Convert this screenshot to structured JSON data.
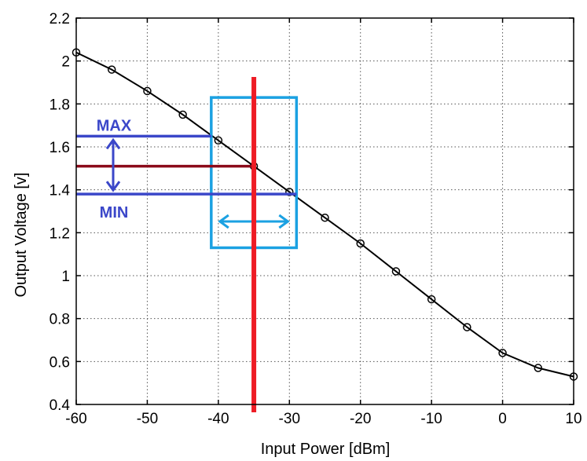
{
  "chart_data": {
    "type": "line",
    "xlabel": "Input Power [dBm]",
    "ylabel": "Output Voltage [v]",
    "xlim": [
      -60,
      10
    ],
    "ylim": [
      0.4,
      2.2
    ],
    "x_ticks": [
      -60,
      -50,
      -40,
      -30,
      -20,
      -10,
      0,
      10
    ],
    "y_ticks": [
      0.4,
      0.6,
      0.8,
      1,
      1.2,
      1.4,
      1.6,
      1.8,
      2,
      2.2
    ],
    "x_tick_labels": [
      "-60",
      "-50",
      "-40",
      "-30",
      "-20",
      "-10",
      "0",
      "10"
    ],
    "y_tick_labels": [
      "0.4",
      "0.6",
      "0.8",
      "1",
      "1.2",
      "1.4",
      "1.6",
      "1.8",
      "2",
      "2.2"
    ],
    "grid": true,
    "series": [
      {
        "x": [
          -60,
          -55,
          -50,
          -45,
          -40,
          -35,
          -30,
          -25,
          -20,
          -15,
          -10,
          -5,
          0,
          5,
          10
        ],
        "y": [
          2.04,
          1.96,
          1.86,
          1.75,
          1.63,
          1.51,
          1.39,
          1.27,
          1.15,
          1.02,
          0.89,
          0.76,
          0.64,
          0.57,
          0.53
        ],
        "color": "#000000",
        "marker": "circle"
      }
    ],
    "annotations": {
      "max_label": "MAX",
      "min_label": "MIN",
      "max_value": 1.65,
      "min_value": 1.38,
      "nominal_value": 1.51,
      "nominal_input": -35,
      "range_input": [
        -41,
        -29
      ],
      "box_output_range": [
        1.13,
        1.83
      ],
      "colors": {
        "red_line": "#ee1c25",
        "box": "#1ba1e2",
        "max_min_lines": "#3b47c9",
        "nominal_line": "#8b0a1a",
        "label_text": "#3b47c9"
      }
    }
  }
}
